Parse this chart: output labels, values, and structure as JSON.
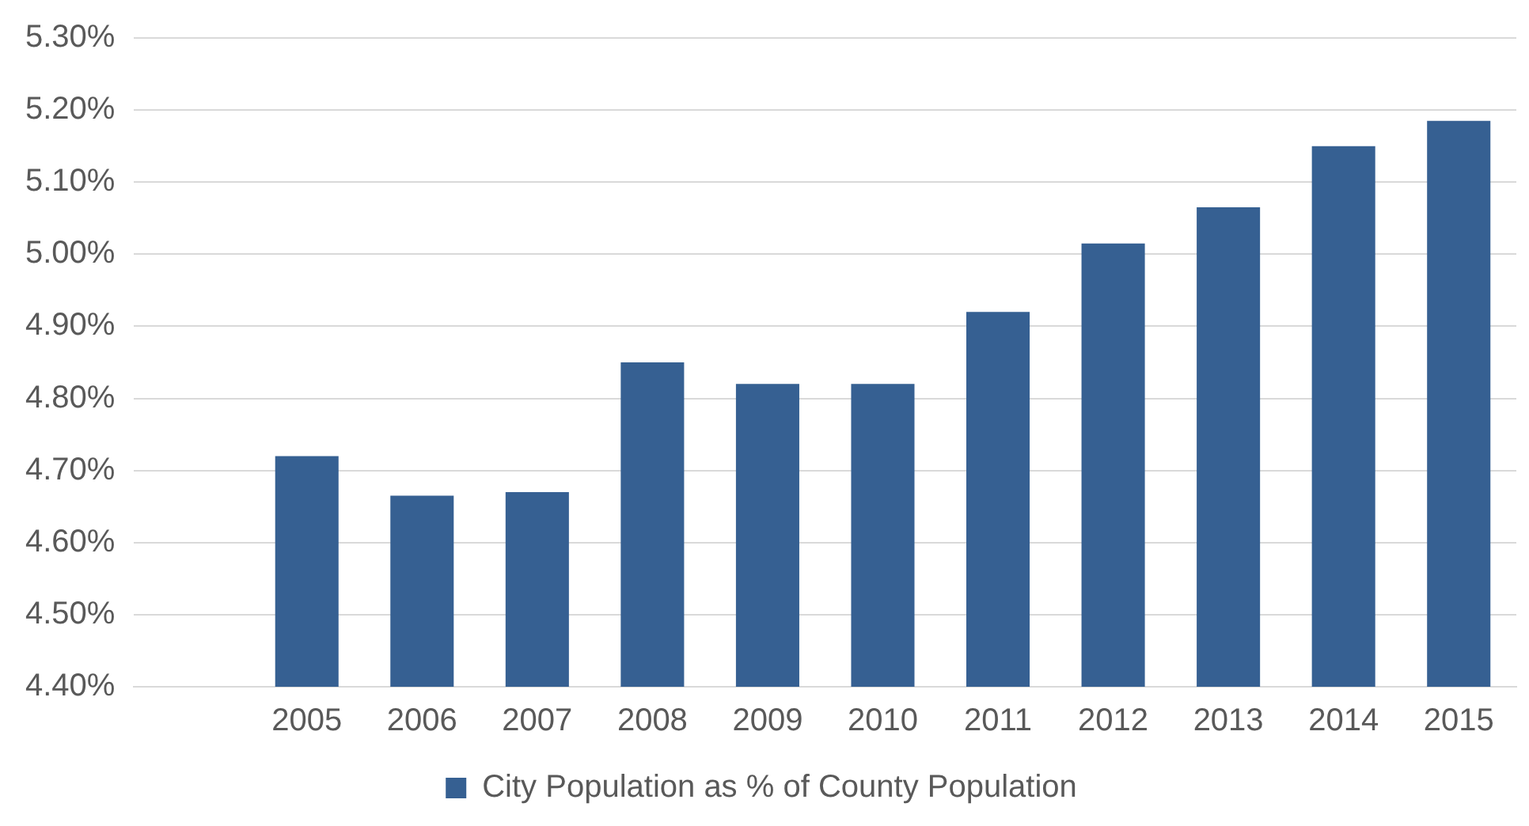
{
  "chart_data": {
    "type": "bar",
    "categories": [
      null,
      "2005",
      "2006",
      "2007",
      "2008",
      "2009",
      "2010",
      "2011",
      "2012",
      "2013",
      "2014",
      "2015"
    ],
    "series": [
      {
        "name": "City Population as % of County Population",
        "color": "#366092",
        "values": [
          null,
          4.72,
          4.665,
          4.67,
          4.85,
          4.82,
          4.82,
          4.92,
          5.015,
          5.065,
          5.15,
          5.185
        ]
      }
    ],
    "ylim": [
      4.4,
      5.3
    ],
    "yticks": [
      {
        "value": 4.4,
        "label": "4.40%"
      },
      {
        "value": 4.5,
        "label": "4.50%"
      },
      {
        "value": 4.6,
        "label": "4.60%"
      },
      {
        "value": 4.7,
        "label": "4.70%"
      },
      {
        "value": 4.8,
        "label": "4.80%"
      },
      {
        "value": 4.9,
        "label": "4.90%"
      },
      {
        "value": 5.0,
        "label": "5.00%"
      },
      {
        "value": 5.1,
        "label": "5.10%"
      },
      {
        "value": 5.2,
        "label": "5.20%"
      },
      {
        "value": 5.3,
        "label": "5.30%"
      }
    ],
    "grid": "y",
    "legend": "bottom"
  }
}
